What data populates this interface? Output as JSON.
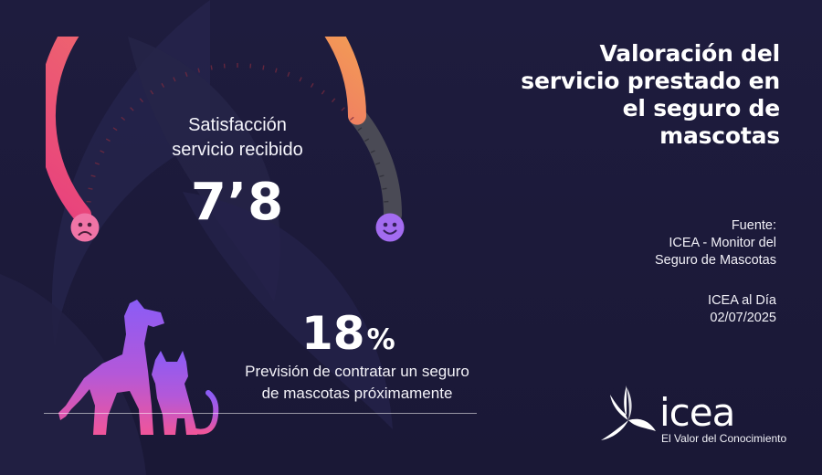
{
  "title": "Valoración del servicio prestado en el seguro de mascotas",
  "title_lines": [
    "Valoración del",
    "servicio prestado en",
    "el seguro de",
    "mascotas"
  ],
  "source": {
    "lines": [
      "Fuente:",
      "ICEA - Monitor del",
      "Seguro de Mascotas"
    ]
  },
  "edition": {
    "lines": [
      "ICEA al Día",
      "02/07/2025"
    ]
  },
  "gauge": {
    "label_lines": [
      "Satisfacción",
      "servicio recibido"
    ],
    "score": "7’8",
    "fraction": 0.78,
    "left_icon": "sad-face-icon",
    "right_icon": "happy-face-icon"
  },
  "stat": {
    "value": "18",
    "unit": "%",
    "label_lines": [
      "Previsión de contratar un seguro",
      "de mascotas próximamente"
    ]
  },
  "brand": {
    "name": "icea",
    "tagline": "El Valor del Conocimiento"
  },
  "colors": {
    "background": "#1c1a3a",
    "gauge_start": "#e8407e",
    "gauge_mid": "#f4b24a",
    "gauge_inactive": "#4a4a55",
    "pet_top": "#8a5cf6",
    "pet_bottom": "#f0559a",
    "happy_face": "#a36cf0",
    "sad_face": "#f074a6"
  }
}
